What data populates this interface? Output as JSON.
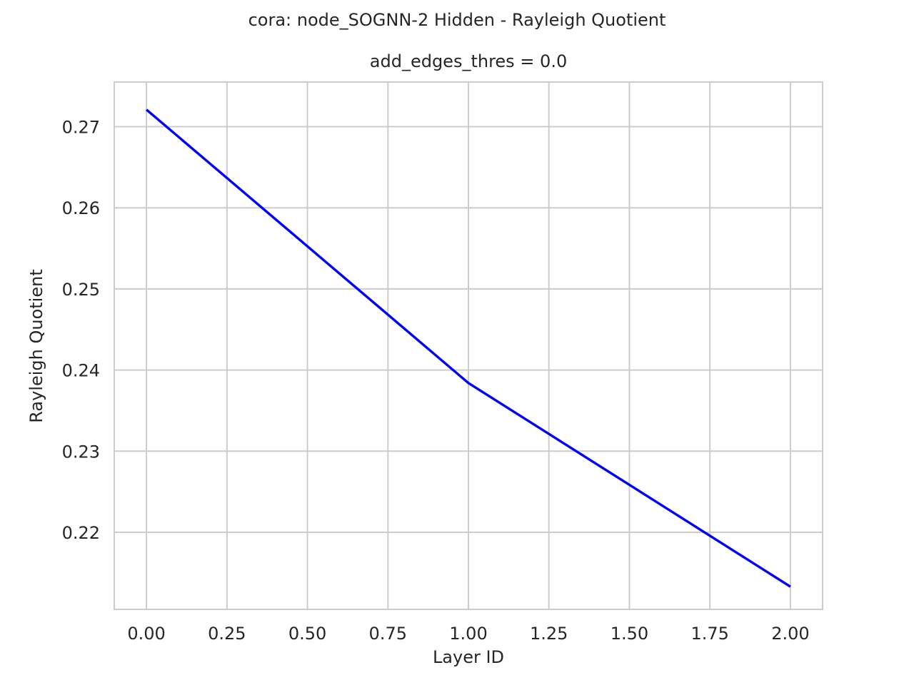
{
  "chart_data": {
    "type": "line",
    "suptitle": "cora: node_SOGNN-2 Hidden - Rayleigh Quotient",
    "title": "add_edges_thres = 0.0",
    "xlabel": "Layer ID",
    "ylabel": "Rayleigh Quotient",
    "x": [
      0,
      1,
      2
    ],
    "series": [
      {
        "values": [
          0.2721,
          0.2384,
          0.2133
        ],
        "color": "#0000ff"
      }
    ],
    "xlim": [
      -0.1,
      2.1
    ],
    "ylim": [
      0.2105,
      0.2755
    ],
    "xticks": [
      0.0,
      0.25,
      0.5,
      0.75,
      1.0,
      1.25,
      1.5,
      1.75,
      2.0
    ],
    "xtick_labels": [
      "0.00",
      "0.25",
      "0.50",
      "0.75",
      "1.00",
      "1.25",
      "1.50",
      "1.75",
      "2.00"
    ],
    "yticks": [
      0.22,
      0.23,
      0.24,
      0.25,
      0.26,
      0.27
    ],
    "ytick_labels": [
      "0.22",
      "0.23",
      "0.24",
      "0.25",
      "0.26",
      "0.27"
    ],
    "grid": true,
    "grid_color": "#cccccc",
    "legend": "none"
  }
}
